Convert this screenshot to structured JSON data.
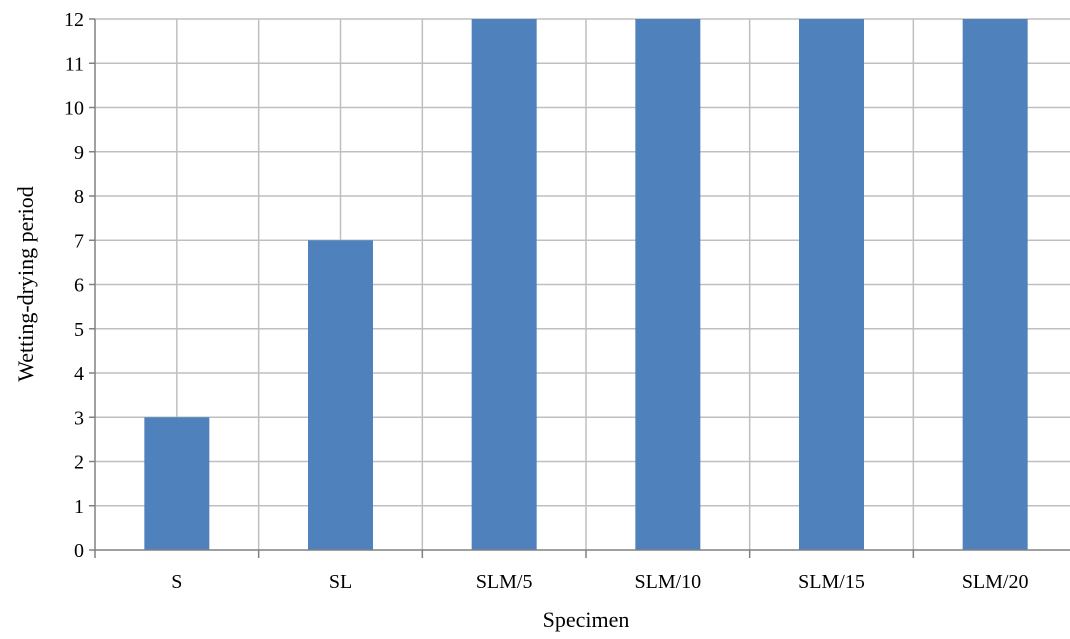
{
  "chart_data": {
    "type": "bar",
    "categories": [
      "S",
      "SL",
      "SLM/5",
      "SLM/10",
      "SLM/15",
      "SLM/20"
    ],
    "values": [
      3,
      7,
      12,
      12,
      12,
      12
    ],
    "xlabel": "Specimen",
    "ylabel": "Wetting-drying period",
    "ylim": [
      0,
      12
    ],
    "yticks": [
      0,
      1,
      2,
      3,
      4,
      5,
      6,
      7,
      8,
      9,
      10,
      11,
      12
    ],
    "grid": true,
    "legend": "none",
    "colors": {
      "bar": "#4F81BD",
      "grid": "#BFBFBF",
      "axis": "#808080"
    }
  }
}
